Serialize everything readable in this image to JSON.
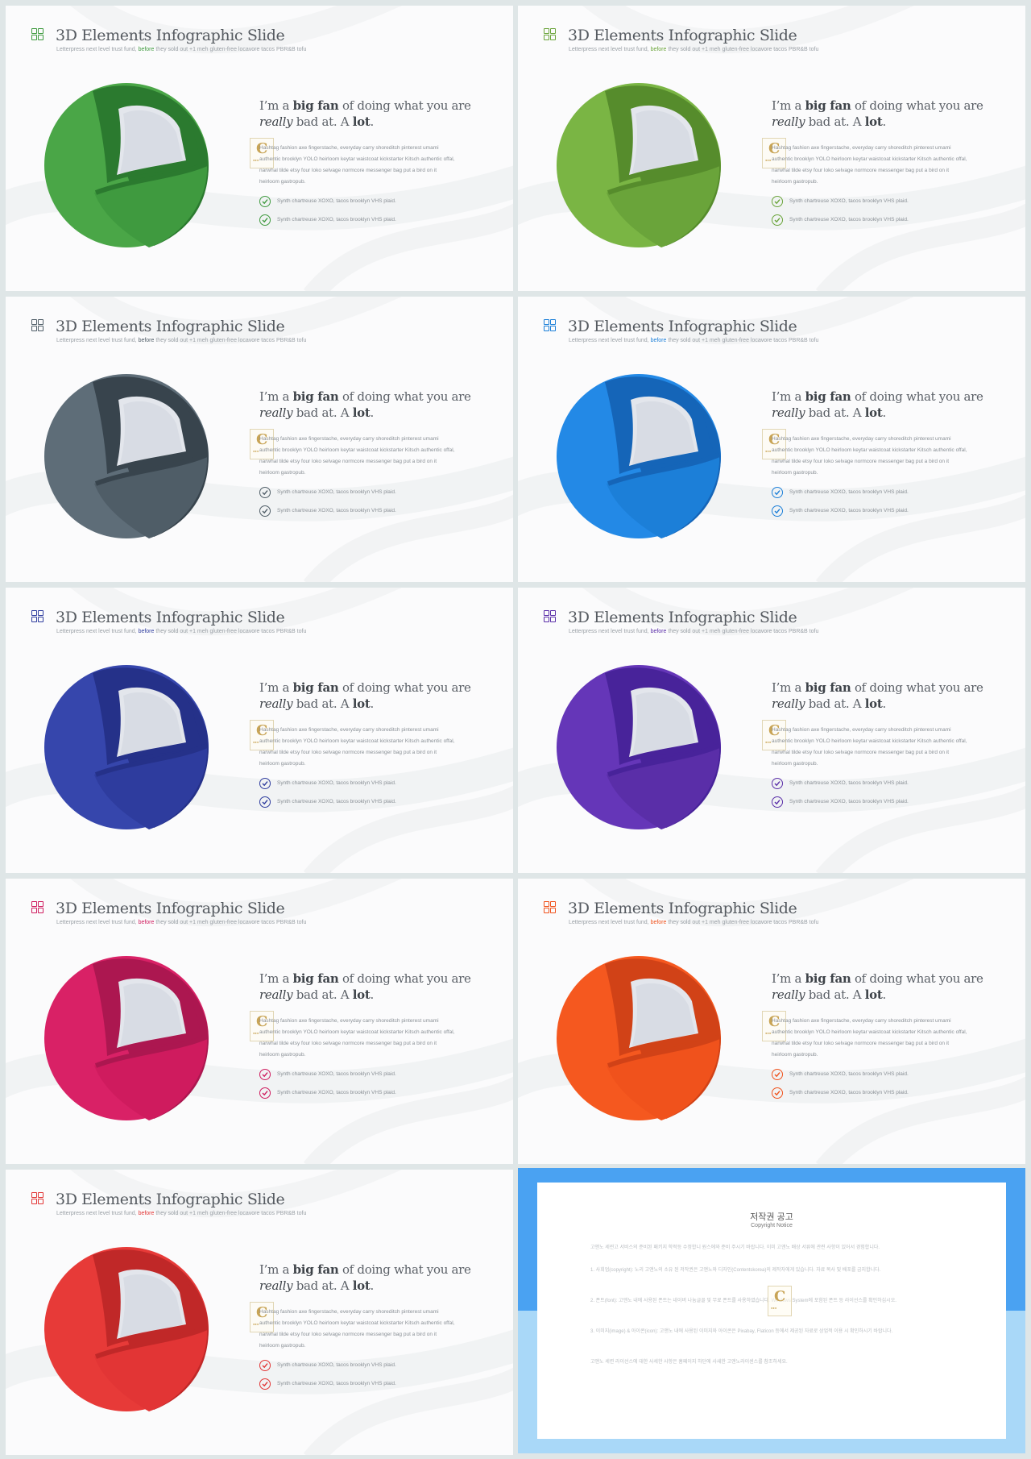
{
  "slide_text": {
    "title": "3D Elements Infographic Slide",
    "subtitle_pre": "Letterpress next level trust fund, ",
    "subtitle_highlight": "before",
    "subtitle_post": " they sold out +1 meh gluten-free locavore tacos PBR&B tofu",
    "headline_1": "I’m a ",
    "headline_bold_1": "big fan",
    "headline_2": " of doing what you are ",
    "headline_italic": "really",
    "headline_3": " bad at. A ",
    "headline_bold_2": "lot",
    "headline_4": ".",
    "body": "Hashtag fashion axe fingerstache, everyday carry shoreditch pinterest umami authentic brooklyn YOLO heirloom keytar waistcoat kickstarter Kitsch authentic offal, narwhal tilde etsy four loko selvage normcore messenger bag put a bird on it heirloom gastropub.",
    "check_1": "Synth chartreuse XOXO, tacos brooklyn VHS plaid.",
    "check_2": "Synth chartreuse XOXO, tacos brooklyn VHS plaid.",
    "watermark_letter": "C"
  },
  "slides": [
    {
      "theme": "green",
      "accent": "#3f9a3f",
      "dark": "#2b7a2f",
      "light": "#4aa647"
    },
    {
      "theme": "lime",
      "accent": "#6aa43a",
      "dark": "#568c2c",
      "light": "#7ab544"
    },
    {
      "theme": "slate",
      "accent": "#4f5d67",
      "dark": "#38444d",
      "light": "#5e6d78"
    },
    {
      "theme": "blue",
      "accent": "#1c7fd8",
      "dark": "#1565b8",
      "light": "#2389e6"
    },
    {
      "theme": "indigo",
      "accent": "#2e3c9e",
      "dark": "#253189",
      "light": "#3646ac"
    },
    {
      "theme": "purple",
      "accent": "#5a2ea8",
      "dark": "#48239a",
      "light": "#6536b8"
    },
    {
      "theme": "magenta",
      "accent": "#cf1b5e",
      "dark": "#ac1750",
      "light": "#d92166"
    },
    {
      "theme": "orange",
      "accent": "#f0521c",
      "dark": "#d14217",
      "light": "#f5581f"
    },
    {
      "theme": "red",
      "accent": "#e23535",
      "dark": "#c02828",
      "light": "#e73a38"
    }
  ],
  "copyright": {
    "title": "저작권 공고",
    "subtitle": "Copyright Notice",
    "p1": "고앤노 세련고 서비스의 준비된 패키지 학적등 수정합니 원스에와 준비 주시기 바랍니다. 이미 고앤노 배상 서류에 관련 사항이 있어서 경험합니다.",
    "p2": "1. 사회업(copyright): 노리 고앤노의 소유 된 저작권은 고앤노와 디자인(Contentskorea)의 제작자에게 있습니다. 자료 복사 및 배포를 금지합니다.",
    "p3": "2. 폰트(font): 고앤노 내에 사용된 폰트는 네이버 나눔글꼴 및 무료 폰트를 사용하였습니다. Windows System에 포함된 폰트 등 라이선스를 확인하십시오.",
    "p4": "3. 이미지(image) & 아이콘(icon): 고앤노 내에 사용된 이미지와 아이콘은 Pixabay, Flaticon 등에서 제공된 자료로 상업적 이용 시 확인하시기 바랍니다.",
    "p5": "고앤노 세련 라이선스에 대한 사세한 사항은 홈페이지 하단에 사새한 고앤노라이센스를 참조하세요."
  }
}
